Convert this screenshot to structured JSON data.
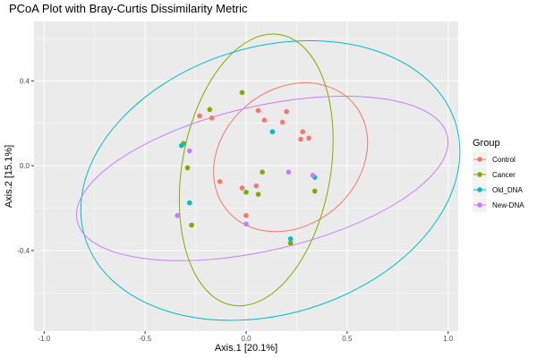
{
  "chart_data": {
    "type": "scatter",
    "title": "PCoA Plot with Bray-Curtis Dissimilarity Metric",
    "xlabel": "Axis.1   [20.1%]",
    "ylabel": "Axis.2   [15.1%]",
    "xlim": [
      -1.05,
      1.05
    ],
    "ylim": [
      -0.78,
      0.68
    ],
    "x_ticks": [
      -1.0,
      -0.5,
      0.0,
      0.5,
      1.0
    ],
    "x_tick_labels": [
      "-1.0",
      "-0.5",
      "0.0",
      "0.5",
      "1.0"
    ],
    "y_ticks": [
      -0.4,
      0.0,
      0.4
    ],
    "y_tick_labels": [
      "-0.4",
      "0.0",
      "0.4"
    ],
    "grid": true,
    "legend_title": "Group",
    "legend_position": "right",
    "series": [
      {
        "name": "Control",
        "color": "#F8766D",
        "points": [
          [
            -0.23,
            0.235
          ],
          [
            -0.17,
            0.225
          ],
          [
            -0.13,
            -0.075
          ],
          [
            -0.02,
            -0.105
          ],
          [
            0.0,
            -0.235
          ],
          [
            0.06,
            0.26
          ],
          [
            0.05,
            -0.095
          ],
          [
            0.09,
            0.215
          ],
          [
            0.18,
            0.205
          ],
          [
            0.2,
            0.255
          ],
          [
            0.28,
            0.16
          ],
          [
            0.31,
            0.13
          ],
          [
            0.27,
            0.125
          ]
        ]
      },
      {
        "name": "Cancer",
        "color": "#7CAE00",
        "points": [
          [
            -0.31,
            0.105
          ],
          [
            -0.18,
            0.265
          ],
          [
            -0.29,
            -0.01
          ],
          [
            -0.27,
            -0.28
          ],
          [
            -0.02,
            0.345
          ],
          [
            0.06,
            -0.135
          ],
          [
            0.0,
            -0.125
          ],
          [
            0.08,
            -0.03
          ],
          [
            0.22,
            -0.365
          ],
          [
            0.34,
            -0.12
          ]
        ]
      },
      {
        "name": "Old_DNA",
        "color": "#00BFC4",
        "points": [
          [
            -0.32,
            0.095
          ],
          [
            -0.28,
            -0.175
          ],
          [
            0.13,
            0.16
          ],
          [
            0.22,
            -0.345
          ],
          [
            0.34,
            -0.055
          ]
        ]
      },
      {
        "name": "New-DNA",
        "color": "#C77CFF",
        "points": [
          [
            -0.28,
            0.07
          ],
          [
            -0.34,
            -0.235
          ],
          [
            0.0,
            -0.275
          ],
          [
            0.21,
            -0.03
          ],
          [
            0.33,
            -0.045
          ]
        ]
      }
    ],
    "ellipses": [
      {
        "series": "Control",
        "color": "#F8766D",
        "cx": 0.22,
        "cy": 0.04,
        "rx": 0.41,
        "ry": 0.32,
        "angle": 40
      },
      {
        "series": "Cancer",
        "color": "#7CAE00",
        "cx": 0.05,
        "cy": -0.02,
        "rx": 0.68,
        "ry": 0.35,
        "angle": 80
      },
      {
        "series": "Old_DNA",
        "color": "#00BFC4",
        "cx": 0.12,
        "cy": -0.07,
        "rx": 0.96,
        "ry": 0.63,
        "angle": 17
      },
      {
        "series": "New-DNA",
        "color": "#C77CFF",
        "cx": 0.08,
        "cy": -0.06,
        "rx": 0.94,
        "ry": 0.34,
        "angle": 13
      }
    ]
  }
}
